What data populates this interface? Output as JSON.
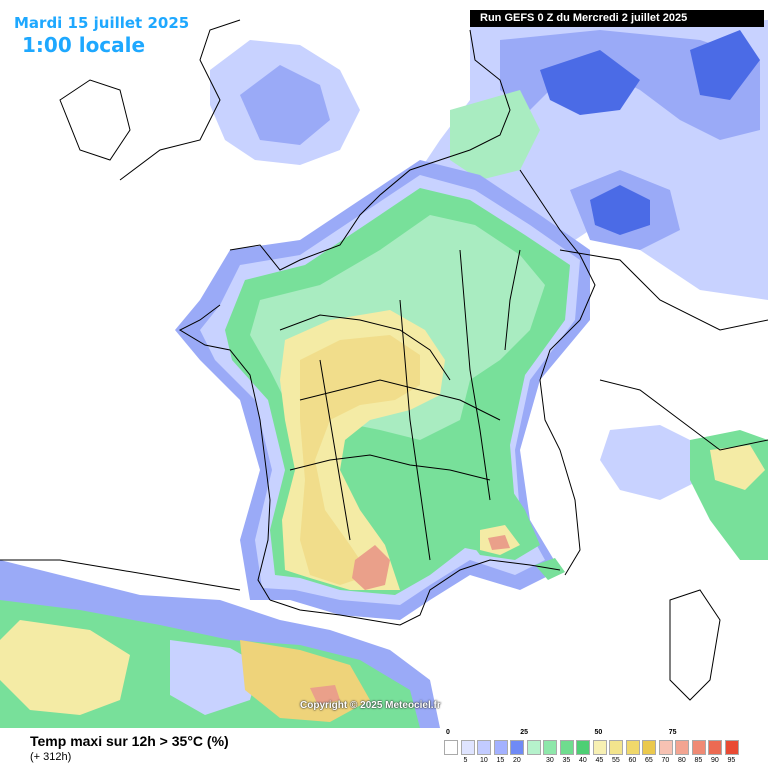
{
  "header": {
    "date": "Mardi 15 juillet 2025",
    "local_time": "1:00 locale",
    "run": "Run GEFS 0 Z du Mercredi 2 juillet 2025"
  },
  "copyright": "Copyright © 2025 Meteociel.fr",
  "footer": {
    "title": "Temp maxi sur 12h > 35°C (%)",
    "subtitle": "(+ 312h)"
  },
  "legend": {
    "major_labels": [
      "0",
      "25",
      "50",
      "75"
    ],
    "minor_labels": [
      "5",
      "10",
      "15",
      "20",
      "30",
      "35",
      "40",
      "45",
      "55",
      "60",
      "65",
      "70",
      "80",
      "85",
      "90",
      "95"
    ],
    "colors": [
      "#ffffff",
      "#dfe4ff",
      "#c2cbff",
      "#a3b1ff",
      "#6f8af5",
      "#b6f2cc",
      "#8ee7aa",
      "#6fdc8e",
      "#4ecf74",
      "#f7f0b3",
      "#f3e48d",
      "#f0d86b",
      "#ebc94d",
      "#f7c2b3",
      "#f3a491",
      "#f08a74",
      "#ec6a52",
      "#e94a33"
    ]
  },
  "map": {
    "colors": {
      "blue_light": "#c8d2ff",
      "blue_mid": "#9aaaf7",
      "blue_dark": "#4b6be6",
      "green_light": "#a9ecc1",
      "green_mid": "#78e09a",
      "yellow_light": "#f4eba5",
      "yellow_mid": "#eed37a",
      "red_light": "#eaa08a",
      "border": "#000000"
    }
  }
}
